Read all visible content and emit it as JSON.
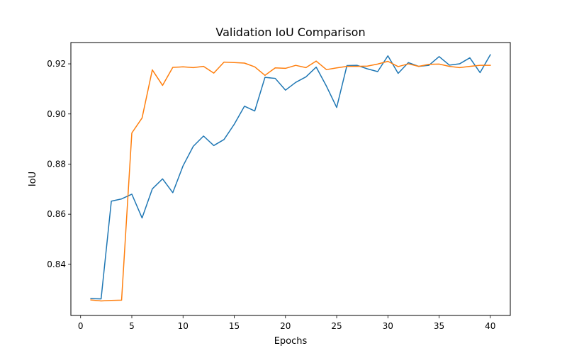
{
  "chart_data": {
    "type": "line",
    "title": "Validation IoU Comparison",
    "xlabel": "Epochs",
    "ylabel": "IoU",
    "xlim": [
      -0.95,
      41.95
    ],
    "ylim": [
      0.8196,
      0.9285
    ],
    "xticks": [
      0,
      5,
      10,
      15,
      20,
      25,
      30,
      35,
      40
    ],
    "yticks": [
      0.84,
      0.86,
      0.88,
      0.9,
      0.92
    ],
    "xtick_labels": [
      "0",
      "5",
      "10",
      "15",
      "20",
      "25",
      "30",
      "35",
      "40"
    ],
    "ytick_labels": [
      "0.84",
      "0.86",
      "0.88",
      "0.90",
      "0.92"
    ],
    "grid": false,
    "legend": "none",
    "x": [
      1,
      2,
      3,
      4,
      5,
      6,
      7,
      8,
      9,
      10,
      11,
      12,
      13,
      14,
      15,
      16,
      17,
      18,
      19,
      20,
      21,
      22,
      23,
      24,
      25,
      26,
      27,
      28,
      29,
      30,
      31,
      32,
      33,
      34,
      35,
      36,
      37,
      38,
      39,
      40
    ],
    "series": [
      {
        "color": "#1f77b4",
        "values": [
          0.8263,
          0.8262,
          0.8652,
          0.8661,
          0.868,
          0.8585,
          0.8701,
          0.8741,
          0.8686,
          0.8793,
          0.8871,
          0.8912,
          0.8874,
          0.8898,
          0.8959,
          0.9031,
          0.9012,
          0.9146,
          0.9142,
          0.9095,
          0.9126,
          0.9148,
          0.9187,
          0.9111,
          0.9026,
          0.9193,
          0.9194,
          0.918,
          0.9169,
          0.9232,
          0.9162,
          0.9205,
          0.919,
          0.9194,
          0.9229,
          0.9195,
          0.92,
          0.9224,
          0.9165,
          0.9236
        ]
      },
      {
        "color": "#ff7f0e",
        "values": [
          0.8258,
          0.8254,
          0.8256,
          0.8257,
          0.8924,
          0.8984,
          0.9176,
          0.9114,
          0.9186,
          0.9188,
          0.9185,
          0.919,
          0.9163,
          0.9207,
          0.9205,
          0.9203,
          0.9188,
          0.9154,
          0.9184,
          0.9182,
          0.9194,
          0.9185,
          0.9211,
          0.9177,
          0.9184,
          0.919,
          0.919,
          0.9191,
          0.9199,
          0.921,
          0.9189,
          0.92,
          0.919,
          0.9198,
          0.9199,
          0.919,
          0.9185,
          0.919,
          0.9194,
          0.9194
        ]
      }
    ]
  }
}
